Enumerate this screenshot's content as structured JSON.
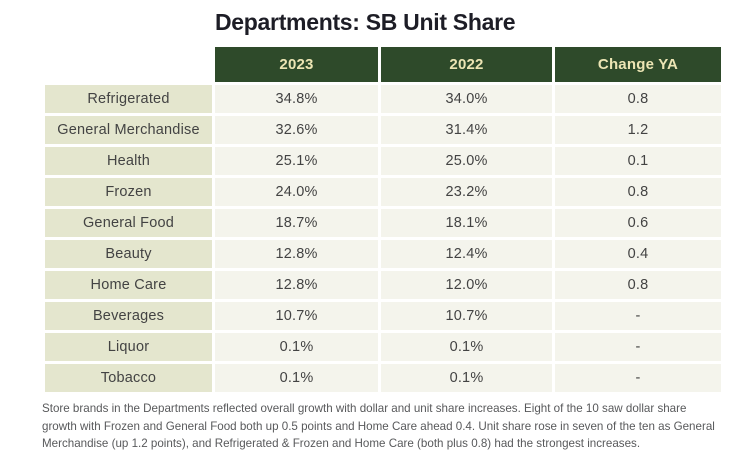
{
  "page": {
    "title": "Departments: SB Unit Share",
    "footnote": "Store brands in the Departments reflected overall growth with dollar and unit share increases. Eight of the 10 saw dollar share growth with Frozen and General Food both up 0.5 points and Home Care ahead 0.4. Unit share rose in seven of the ten as General Merchandise (up 1.2 points), and Refrigerated & Frozen and Home Care (both plus 0.8) had the strongest increases."
  },
  "colors": {
    "header_bg": "#2e4a2a",
    "header_fg": "#ece5b4",
    "label_cell_bg": "#e4e6ce",
    "value_cell_bg": "#f4f4ec",
    "title_fg": "#1d1d26",
    "cell_fg": "#434343",
    "footnote_fg": "#58595b"
  },
  "chart_data": {
    "type": "table",
    "title": "Departments: SB Unit Share",
    "columns": [
      "",
      "2023",
      "2022",
      "Change YA"
    ],
    "rows": [
      [
        "Refrigerated",
        "34.8%",
        "34.0%",
        "0.8"
      ],
      [
        "General Merchandise",
        "32.6%",
        "31.4%",
        "1.2"
      ],
      [
        "Health",
        "25.1%",
        "25.0%",
        "0.1"
      ],
      [
        "Frozen",
        "24.0%",
        "23.2%",
        "0.8"
      ],
      [
        "General Food",
        "18.7%",
        "18.1%",
        "0.6"
      ],
      [
        "Beauty",
        "12.8%",
        "12.4%",
        "0.4"
      ],
      [
        "Home Care",
        "12.8%",
        "12.0%",
        "0.8"
      ],
      [
        "Beverages",
        "10.7%",
        "10.7%",
        "-"
      ],
      [
        "Liquor",
        "0.1%",
        "0.1%",
        "-"
      ],
      [
        "Tobacco",
        "0.1%",
        "0.1%",
        "-"
      ]
    ],
    "layout": {
      "header_style": "dark-green band over value columns only",
      "row_label_column": "left, pale sage cells",
      "grid": "white 3px gaps between all cells, no outer border"
    }
  }
}
